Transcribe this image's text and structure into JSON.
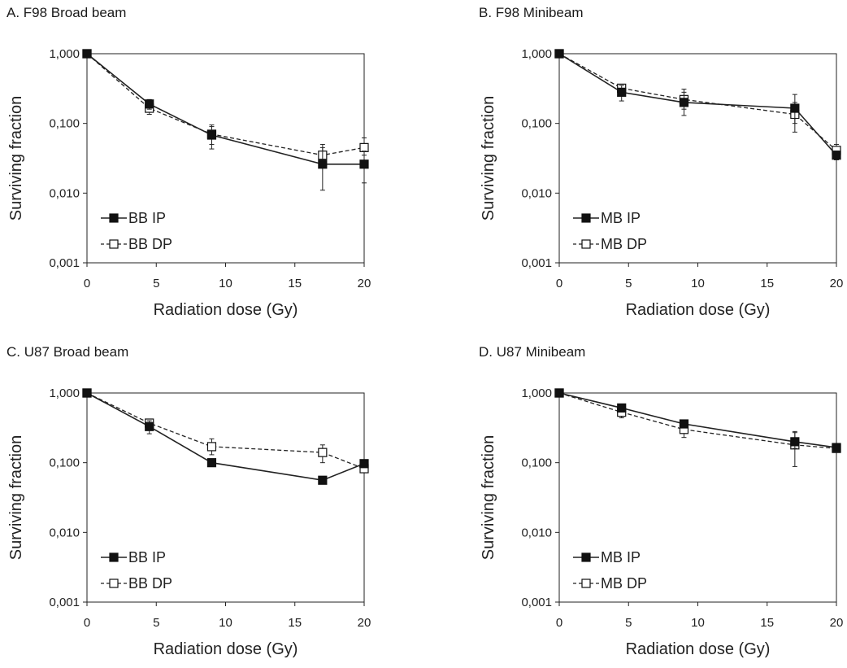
{
  "chart_data": [
    {
      "panel": "A",
      "title": "A. F98 Broad beam",
      "type": "line",
      "xlabel": "Radiation dose (Gy)",
      "ylabel": "Surviving fraction",
      "xlim": [
        0,
        20
      ],
      "ylim": [
        0.001,
        1
      ],
      "yscale": "log",
      "xticks": [
        "0",
        "5",
        "10",
        "15",
        "20"
      ],
      "yticks": [
        "0,001",
        "0,010",
        "0,100",
        "1,000"
      ],
      "legend_position": "bottom-left",
      "series": [
        {
          "name": "BB IP",
          "style": "solid",
          "marker": "filled-square",
          "x": [
            0,
            4.5,
            9,
            17,
            20
          ],
          "y": [
            1.0,
            0.19,
            0.068,
            0.026,
            0.026
          ],
          "err_low": [
            1.0,
            0.16,
            0.043,
            0.011,
            0.014
          ],
          "err_high": [
            1.0,
            0.22,
            0.095,
            0.045,
            0.04
          ]
        },
        {
          "name": "BB DP",
          "style": "dashed",
          "marker": "open-square",
          "x": [
            0,
            4.5,
            9,
            17,
            20
          ],
          "y": [
            1.0,
            0.165,
            0.07,
            0.035,
            0.045
          ],
          "err_low": [
            1.0,
            0.135,
            0.05,
            0.028,
            0.035
          ],
          "err_high": [
            1.0,
            0.2,
            0.09,
            0.05,
            0.062
          ]
        }
      ]
    },
    {
      "panel": "B",
      "title": "B. F98 Minibeam",
      "type": "line",
      "xlabel": "Radiation dose (Gy)",
      "ylabel": "Surviving fraction",
      "xlim": [
        0,
        20
      ],
      "ylim": [
        0.001,
        1
      ],
      "yscale": "log",
      "xticks": [
        "0",
        "5",
        "10",
        "15",
        "20"
      ],
      "yticks": [
        "0,001",
        "0,010",
        "0,100",
        "1,000"
      ],
      "legend_position": "bottom-left",
      "series": [
        {
          "name": "MB IP",
          "style": "solid",
          "marker": "filled-square",
          "x": [
            0,
            4.5,
            9,
            17,
            20
          ],
          "y": [
            1.0,
            0.28,
            0.2,
            0.165,
            0.035
          ],
          "err_low": [
            1.0,
            0.21,
            0.13,
            0.1,
            0.03
          ],
          "err_high": [
            1.0,
            0.35,
            0.28,
            0.26,
            0.04
          ]
        },
        {
          "name": "MB DP",
          "style": "dashed",
          "marker": "open-square",
          "x": [
            0,
            4.5,
            9,
            17,
            20
          ],
          "y": [
            1.0,
            0.32,
            0.22,
            0.135,
            0.041
          ],
          "err_low": [
            1.0,
            0.28,
            0.16,
            0.075,
            0.034
          ],
          "err_high": [
            1.0,
            0.36,
            0.31,
            0.2,
            0.05
          ]
        }
      ]
    },
    {
      "panel": "C",
      "title": "C. U87 Broad beam",
      "type": "line",
      "xlabel": "Radiation dose (Gy)",
      "ylabel": "Surviving fraction",
      "xlim": [
        0,
        20
      ],
      "ylim": [
        0.001,
        1
      ],
      "yscale": "log",
      "xticks": [
        "0",
        "5",
        "10",
        "15",
        "20"
      ],
      "yticks": [
        "0,001",
        "0,010",
        "0,100",
        "1,000"
      ],
      "legend_position": "bottom-left",
      "series": [
        {
          "name": "BB IP",
          "style": "solid",
          "marker": "filled-square",
          "x": [
            0,
            4.5,
            9,
            17,
            20
          ],
          "y": [
            1.0,
            0.33,
            0.1,
            0.056,
            0.097
          ],
          "err_low": [
            1.0,
            0.26,
            0.092,
            0.052,
            0.09
          ],
          "err_high": [
            1.0,
            0.4,
            0.108,
            0.06,
            0.104
          ]
        },
        {
          "name": "BB DP",
          "style": "dashed",
          "marker": "open-square",
          "x": [
            0,
            4.5,
            9,
            17,
            20
          ],
          "y": [
            1.0,
            0.37,
            0.17,
            0.14,
            0.082
          ],
          "err_low": [
            1.0,
            0.3,
            0.13,
            0.1,
            0.075
          ],
          "err_high": [
            1.0,
            0.42,
            0.22,
            0.18,
            0.09
          ]
        }
      ]
    },
    {
      "panel": "D",
      "title": "D. U87 Minibeam",
      "type": "line",
      "xlabel": "Radiation dose (Gy)",
      "ylabel": "Surviving fraction",
      "xlim": [
        0,
        20
      ],
      "ylim": [
        0.001,
        1
      ],
      "yscale": "log",
      "xticks": [
        "0",
        "5",
        "10",
        "15",
        "20"
      ],
      "yticks": [
        "0,001",
        "0,010",
        "0,100",
        "1,000"
      ],
      "legend_position": "bottom-left",
      "series": [
        {
          "name": "MB IP",
          "style": "solid",
          "marker": "filled-square",
          "x": [
            0,
            4.5,
            9,
            17,
            20
          ],
          "y": [
            1.0,
            0.61,
            0.36,
            0.2,
            0.165
          ],
          "err_low": [
            1.0,
            0.55,
            0.33,
            0.16,
            0.15
          ],
          "err_high": [
            1.0,
            0.68,
            0.39,
            0.28,
            0.18
          ]
        },
        {
          "name": "MB DP",
          "style": "dashed",
          "marker": "open-square",
          "x": [
            0,
            4.5,
            9,
            17,
            20
          ],
          "y": [
            1.0,
            0.53,
            0.3,
            0.18,
            0.16
          ],
          "err_low": [
            1.0,
            0.44,
            0.23,
            0.088,
            0.148
          ],
          "err_high": [
            1.0,
            0.6,
            0.36,
            0.27,
            0.175
          ]
        }
      ]
    }
  ]
}
